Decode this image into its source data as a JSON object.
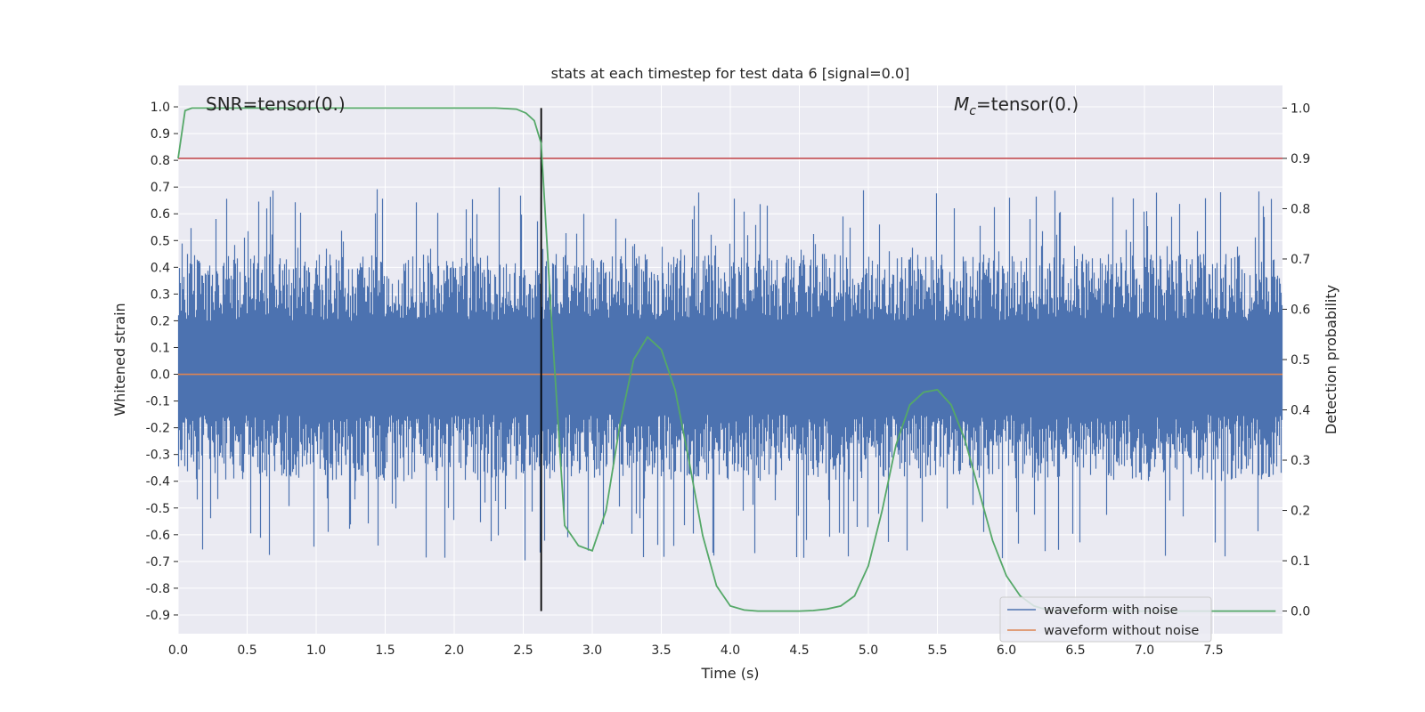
{
  "chart_data": {
    "type": "line",
    "title": "stats at each timestep for test data 6 [signal=0.0]",
    "xlabel": "Time (s)",
    "ylabel": "Whitened strain",
    "y2label": "Detection probability",
    "xlim": [
      0,
      8.0
    ],
    "ylim": [
      -0.97,
      1.08
    ],
    "y2lim": [
      -0.045,
      1.045
    ],
    "xticks": [
      "0.0",
      "0.5",
      "1.0",
      "1.5",
      "2.0",
      "2.5",
      "3.0",
      "3.5",
      "4.0",
      "4.5",
      "5.0",
      "5.5",
      "6.0",
      "6.5",
      "7.0",
      "7.5"
    ],
    "yticks": [
      "1.0",
      "0.9",
      "0.8",
      "0.7",
      "0.6",
      "0.5",
      "0.4",
      "0.3",
      "0.2",
      "0.1",
      "0.0",
      "-0.1",
      "-0.2",
      "-0.3",
      "-0.4",
      "-0.5",
      "-0.6",
      "-0.7",
      "-0.8",
      "-0.9"
    ],
    "y2ticks": [
      "1.0",
      "0.9",
      "0.8",
      "0.7",
      "0.6",
      "0.5",
      "0.4",
      "0.3",
      "0.2",
      "0.1",
      "0.0"
    ],
    "grid": true,
    "legend_position": "bottom-right",
    "annotations": {
      "snr": "SNR=tensor(0.)",
      "mc_symbol": "M",
      "mc_sub": "c",
      "mc_value": "=tensor(0.)"
    },
    "vertical_marker": {
      "x": 2.63,
      "color": "#000000"
    },
    "threshold": {
      "axis": "right",
      "y": 0.9,
      "color": "#c44e52"
    },
    "series": [
      {
        "name": "waveform with noise",
        "axis": "left",
        "color": "#4c72b0",
        "kind": "noise",
        "envelope_pos": 0.45,
        "envelope_neg": -0.45
      },
      {
        "name": "waveform without noise",
        "axis": "left",
        "color": "#dd8452",
        "x": [
          0,
          8.0
        ],
        "y": [
          0,
          0
        ]
      },
      {
        "axis": "right",
        "color": "#55a868",
        "x": [
          0,
          0.05,
          0.1,
          0.3,
          0.5,
          1.0,
          1.5,
          2.0,
          2.3,
          2.45,
          2.52,
          2.58,
          2.63,
          2.7,
          2.8,
          2.9,
          3.0,
          3.1,
          3.2,
          3.3,
          3.4,
          3.5,
          3.6,
          3.7,
          3.8,
          3.9,
          4.0,
          4.1,
          4.2,
          4.3,
          4.4,
          4.5,
          4.6,
          4.7,
          4.8,
          4.9,
          5.0,
          5.1,
          5.2,
          5.3,
          5.4,
          5.5,
          5.6,
          5.7,
          5.8,
          5.9,
          6.0,
          6.1,
          6.2,
          6.3,
          6.5,
          7.0,
          7.5,
          7.95
        ],
        "y": [
          0.9,
          0.995,
          1.0,
          1.0,
          1.0,
          1.0,
          1.0,
          1.0,
          1.0,
          0.998,
          0.99,
          0.975,
          0.93,
          0.6,
          0.17,
          0.13,
          0.12,
          0.2,
          0.37,
          0.5,
          0.545,
          0.52,
          0.44,
          0.3,
          0.15,
          0.05,
          0.01,
          0.002,
          0.0,
          0.0,
          0.0,
          0.0,
          0.001,
          0.004,
          0.01,
          0.03,
          0.09,
          0.2,
          0.33,
          0.41,
          0.435,
          0.44,
          0.41,
          0.34,
          0.24,
          0.14,
          0.07,
          0.03,
          0.01,
          0.002,
          0.0,
          0.0,
          0.0,
          0.0
        ]
      }
    ]
  }
}
